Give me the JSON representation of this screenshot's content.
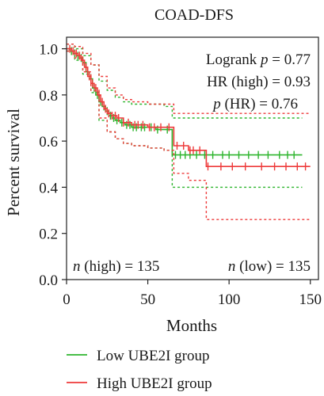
{
  "chart_data": {
    "type": "line",
    "title": "COAD-DFS",
    "xlabel": "Months",
    "ylabel": "Percent survival",
    "xlim": [
      0,
      155
    ],
    "ylim": [
      0,
      1.05
    ],
    "xticks": [
      "0",
      "50",
      "100",
      "150"
    ],
    "yticks": [
      "0.0",
      "0.2",
      "0.4",
      "0.6",
      "0.8",
      "1.0"
    ],
    "grid": false,
    "legend_position": "bottom",
    "annotations": {
      "logrank": "Logrank p = 0.77",
      "hr": "HR (high) = 0.93",
      "p_hr": "p (HR) = 0.76",
      "n_high": "n (high) = 135",
      "n_low": "n (low) = 135"
    },
    "series": [
      {
        "name": "Low UBE2I group",
        "color": "#2db52d",
        "step": [
          [
            0,
            1.0
          ],
          [
            2,
            0.99
          ],
          [
            4,
            0.98
          ],
          [
            6,
            0.97
          ],
          [
            8,
            0.96
          ],
          [
            10,
            0.94
          ],
          [
            12,
            0.9
          ],
          [
            14,
            0.87
          ],
          [
            16,
            0.83
          ],
          [
            18,
            0.8
          ],
          [
            20,
            0.77
          ],
          [
            22,
            0.75
          ],
          [
            24,
            0.73
          ],
          [
            26,
            0.71
          ],
          [
            28,
            0.7
          ],
          [
            30,
            0.69
          ],
          [
            33,
            0.68
          ],
          [
            36,
            0.67
          ],
          [
            40,
            0.66
          ],
          [
            45,
            0.66
          ],
          [
            50,
            0.66
          ],
          [
            55,
            0.65
          ],
          [
            60,
            0.65
          ],
          [
            65,
            0.54
          ],
          [
            70,
            0.54
          ],
          [
            86,
            0.54
          ],
          [
            100,
            0.54
          ],
          [
            145,
            0.54
          ]
        ],
        "upper": [
          [
            0,
            1.02
          ],
          [
            5,
            1.0
          ],
          [
            10,
            0.97
          ],
          [
            15,
            0.93
          ],
          [
            20,
            0.86
          ],
          [
            25,
            0.82
          ],
          [
            30,
            0.79
          ],
          [
            35,
            0.77
          ],
          [
            40,
            0.76
          ],
          [
            50,
            0.76
          ],
          [
            60,
            0.75
          ],
          [
            65,
            0.7
          ],
          [
            70,
            0.7
          ],
          [
            145,
            0.7
          ]
        ],
        "lower": [
          [
            0,
            0.99
          ],
          [
            5,
            0.95
          ],
          [
            10,
            0.89
          ],
          [
            15,
            0.81
          ],
          [
            20,
            0.69
          ],
          [
            25,
            0.64
          ],
          [
            30,
            0.61
          ],
          [
            35,
            0.59
          ],
          [
            40,
            0.58
          ],
          [
            50,
            0.57
          ],
          [
            60,
            0.56
          ],
          [
            65,
            0.4
          ],
          [
            70,
            0.4
          ],
          [
            145,
            0.4
          ]
        ],
        "censor_x": [
          3,
          5,
          7,
          9,
          13,
          17,
          19,
          21,
          23,
          25,
          27,
          29,
          31,
          34,
          37,
          39,
          41,
          43,
          46,
          48,
          52,
          56,
          62,
          67,
          70,
          73,
          76,
          80,
          85,
          90,
          96,
          100,
          106,
          112,
          118,
          124,
          131,
          136,
          140
        ]
      },
      {
        "name": "High UBE2I group",
        "color": "#ee3a3a",
        "step": [
          [
            0,
            1.0
          ],
          [
            3,
            0.99
          ],
          [
            5,
            0.98
          ],
          [
            7,
            0.97
          ],
          [
            9,
            0.95
          ],
          [
            11,
            0.92
          ],
          [
            13,
            0.88
          ],
          [
            15,
            0.85
          ],
          [
            17,
            0.83
          ],
          [
            19,
            0.8
          ],
          [
            21,
            0.77
          ],
          [
            23,
            0.74
          ],
          [
            25,
            0.72
          ],
          [
            28,
            0.71
          ],
          [
            31,
            0.7
          ],
          [
            35,
            0.68
          ],
          [
            40,
            0.67
          ],
          [
            45,
            0.67
          ],
          [
            50,
            0.66
          ],
          [
            55,
            0.66
          ],
          [
            60,
            0.66
          ],
          [
            65,
            0.66
          ],
          [
            66,
            0.58
          ],
          [
            70,
            0.58
          ],
          [
            74,
            0.58
          ],
          [
            75,
            0.56
          ],
          [
            80,
            0.56
          ],
          [
            86,
            0.49
          ],
          [
            100,
            0.49
          ],
          [
            150,
            0.49
          ]
        ],
        "upper": [
          [
            0,
            1.02
          ],
          [
            5,
            1.01
          ],
          [
            10,
            0.98
          ],
          [
            15,
            0.93
          ],
          [
            20,
            0.88
          ],
          [
            25,
            0.83
          ],
          [
            30,
            0.8
          ],
          [
            35,
            0.78
          ],
          [
            40,
            0.77
          ],
          [
            50,
            0.76
          ],
          [
            60,
            0.76
          ],
          [
            66,
            0.72
          ],
          [
            75,
            0.72
          ],
          [
            86,
            0.72
          ],
          [
            150,
            0.72
          ]
        ],
        "lower": [
          [
            0,
            0.99
          ],
          [
            5,
            0.96
          ],
          [
            10,
            0.9
          ],
          [
            15,
            0.82
          ],
          [
            20,
            0.7
          ],
          [
            25,
            0.64
          ],
          [
            30,
            0.61
          ],
          [
            35,
            0.59
          ],
          [
            40,
            0.58
          ],
          [
            50,
            0.57
          ],
          [
            60,
            0.56
          ],
          [
            66,
            0.46
          ],
          [
            75,
            0.43
          ],
          [
            86,
            0.26
          ],
          [
            150,
            0.26
          ]
        ],
        "censor_x": [
          2,
          4,
          6,
          8,
          10,
          12,
          14,
          16,
          18,
          20,
          22,
          24,
          26,
          28,
          30,
          32,
          35,
          38,
          42,
          44,
          47,
          51,
          54,
          58,
          63,
          68,
          72,
          76,
          78,
          82,
          87,
          95,
          102,
          110,
          120,
          128,
          135,
          142,
          147
        ]
      }
    ]
  }
}
